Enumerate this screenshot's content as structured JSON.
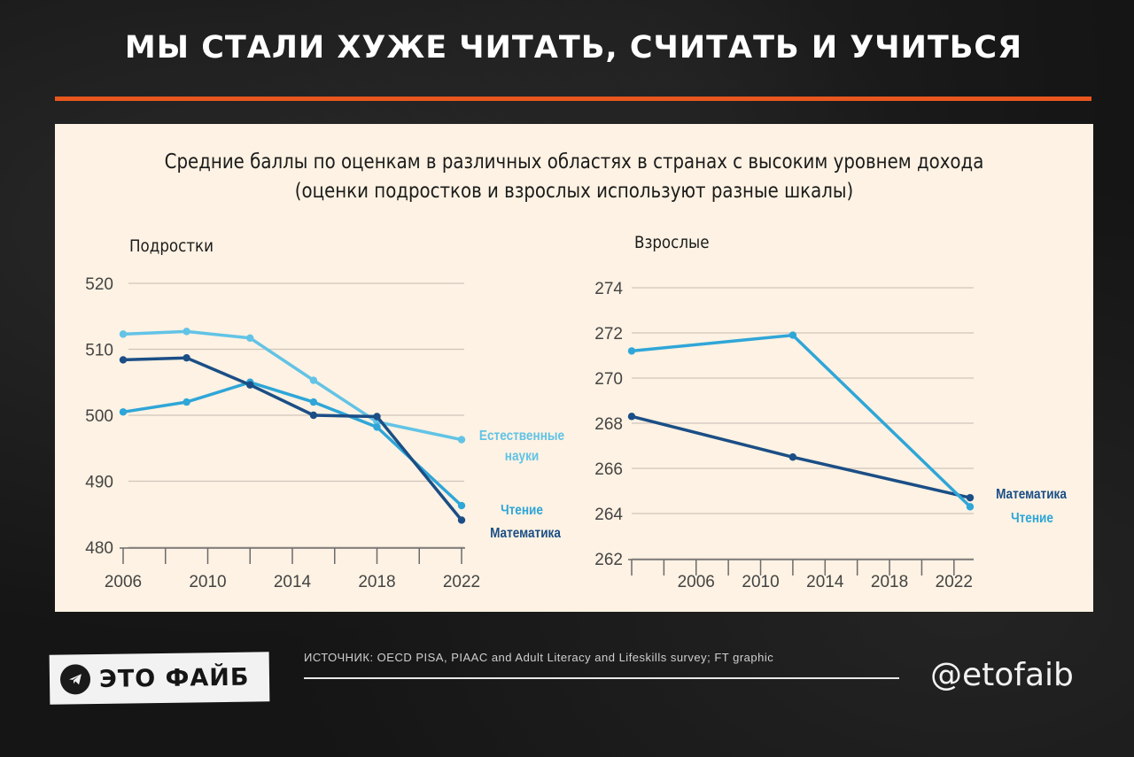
{
  "headline": "МЫ СТАЛИ ХУЖЕ ЧИТАТЬ, СЧИТАТЬ И УЧИТЬСЯ",
  "panel_title_line1": "Средние баллы по оценкам в различных областях в странах с высоким уровнем дохода",
  "panel_title_line2": "(оценки подростков и взрослых используют разные шкалы)",
  "footer": {
    "logo_text": "ЭТО ФАЙБ",
    "logo_icon": "telegram-icon",
    "source": "ИСТОЧНИК: OECD PISA, PIAAC and Adult Literacy and Lifeskills survey; FT graphic",
    "handle": "@etofaib"
  },
  "colors": {
    "background": "#141414",
    "accent": "#e8571e",
    "panel": "#fdf2e3",
    "math": "#1b4e86",
    "reading": "#2fa6d8",
    "science": "#62c3e6"
  },
  "chart_data": [
    {
      "type": "line",
      "title": "Подростки",
      "ylim": [
        480,
        520
      ],
      "yticks": [
        "480",
        "490",
        "500",
        "510",
        "520"
      ],
      "xlim": [
        2006,
        2022
      ],
      "xticks": [
        "2006",
        "2010",
        "2014",
        "2018",
        "2022"
      ],
      "grid": true,
      "series": [
        {
          "name": "Естественные науки",
          "label_lines": [
            "Естественные",
            "науки"
          ],
          "color": "#62c3e6",
          "x": [
            2006,
            2009,
            2012,
            2015,
            2018,
            2022
          ],
          "y": [
            512.3,
            512.7,
            511.7,
            505.3,
            499.0,
            496.3
          ]
        },
        {
          "name": "Чтение",
          "label_lines": [
            "Чтение"
          ],
          "color": "#2fa6d8",
          "x": [
            2006,
            2009,
            2012,
            2015,
            2018,
            2022
          ],
          "y": [
            500.5,
            502.0,
            505.0,
            502.0,
            498.2,
            486.3
          ]
        },
        {
          "name": "Математика",
          "label_lines": [
            "Математика"
          ],
          "color": "#1b4e86",
          "x": [
            2006,
            2009,
            2012,
            2015,
            2018,
            2022
          ],
          "y": [
            508.4,
            508.7,
            504.6,
            500.0,
            499.8,
            484.1
          ]
        }
      ]
    },
    {
      "type": "line",
      "title": "Взрослые",
      "ylim": [
        262,
        274
      ],
      "yticks": [
        "262",
        "264",
        "266",
        "268",
        "270",
        "272",
        "274"
      ],
      "xlim": [
        2002,
        2023
      ],
      "xticks": [
        "2006",
        "2010",
        "2014",
        "2018",
        "2022"
      ],
      "grid": true,
      "series": [
        {
          "name": "Математика",
          "label_lines": [
            "Математика"
          ],
          "color": "#1b4e86",
          "x": [
            2002,
            2012,
            2023
          ],
          "y": [
            268.3,
            266.5,
            264.7
          ]
        },
        {
          "name": "Чтение",
          "label_lines": [
            "Чтение"
          ],
          "color": "#2fa6d8",
          "x": [
            2002,
            2012,
            2023
          ],
          "y": [
            271.2,
            271.9,
            264.3
          ]
        }
      ]
    }
  ]
}
